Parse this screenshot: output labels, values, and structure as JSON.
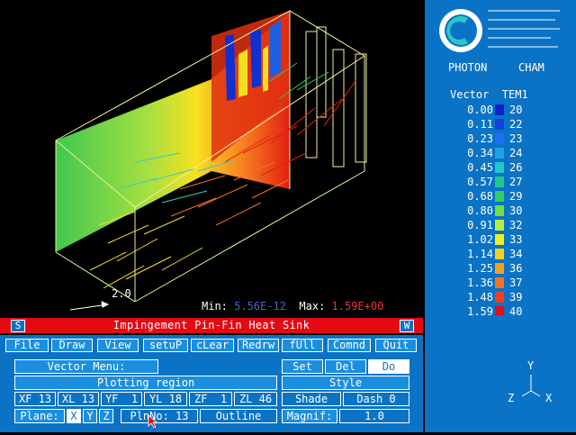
{
  "app": {
    "brand_left": "PHOTON",
    "brand_right": "CHAM"
  },
  "viewport": {
    "scale_arrow_label": "2.0",
    "min_label": "Min:",
    "min_value": "5.56E-12",
    "max_label": "Max:",
    "max_value": "1.59E+00"
  },
  "legend": {
    "title": "Vector  TEM1",
    "entries": [
      {
        "value": "0.00",
        "index": "20",
        "color": "#1020c8"
      },
      {
        "value": "0.11",
        "index": "22",
        "color": "#1040e0"
      },
      {
        "value": "0.23",
        "index": "23",
        "color": "#1a70f0"
      },
      {
        "value": "0.34",
        "index": "24",
        "color": "#20a0e8"
      },
      {
        "value": "0.45",
        "index": "26",
        "color": "#20c8c8"
      },
      {
        "value": "0.57",
        "index": "27",
        "color": "#20c890"
      },
      {
        "value": "0.68",
        "index": "29",
        "color": "#30d060"
      },
      {
        "value": "0.80",
        "index": "30",
        "color": "#70e040"
      },
      {
        "value": "0.91",
        "index": "32",
        "color": "#b8f040"
      },
      {
        "value": "1.02",
        "index": "33",
        "color": "#f0f020"
      },
      {
        "value": "1.14",
        "index": "34",
        "color": "#f8d020"
      },
      {
        "value": "1.25",
        "index": "36",
        "color": "#f8a020"
      },
      {
        "value": "1.36",
        "index": "37",
        "color": "#f87020"
      },
      {
        "value": "1.48",
        "index": "39",
        "color": "#f04020"
      },
      {
        "value": "1.59",
        "index": "40",
        "color": "#e01010"
      }
    ]
  },
  "title_bar": {
    "left_btn": "S",
    "title": "Impingement Pin-Fin Heat Sink",
    "right_btn": "W"
  },
  "menu": [
    "File",
    "Draw",
    "View",
    "setuP",
    "cLear",
    "Redrw",
    "fUll",
    "Comnd",
    "Quit"
  ],
  "panel": {
    "vector_menu": "Vector Menu:",
    "set": "Set",
    "del": "Del",
    "do": "Do",
    "plotting_region": "Plotting region",
    "style": "Style",
    "xf": "XF 13",
    "xl": "XL 13",
    "yf": "YF  1",
    "yl": "YL 18",
    "zf": "ZF  1",
    "zl": "ZL 46",
    "shade": "Shade",
    "dash": "Dash 0",
    "plane": "Plane:",
    "x": "X",
    "y": "Y",
    "z": "Z",
    "plnno": "PlnNo: 13",
    "outline": "Outline",
    "magnif": "Magnif:",
    "magnif_val": "1.0"
  },
  "axes": {
    "x": "X",
    "y": "Y",
    "z": "Z"
  }
}
